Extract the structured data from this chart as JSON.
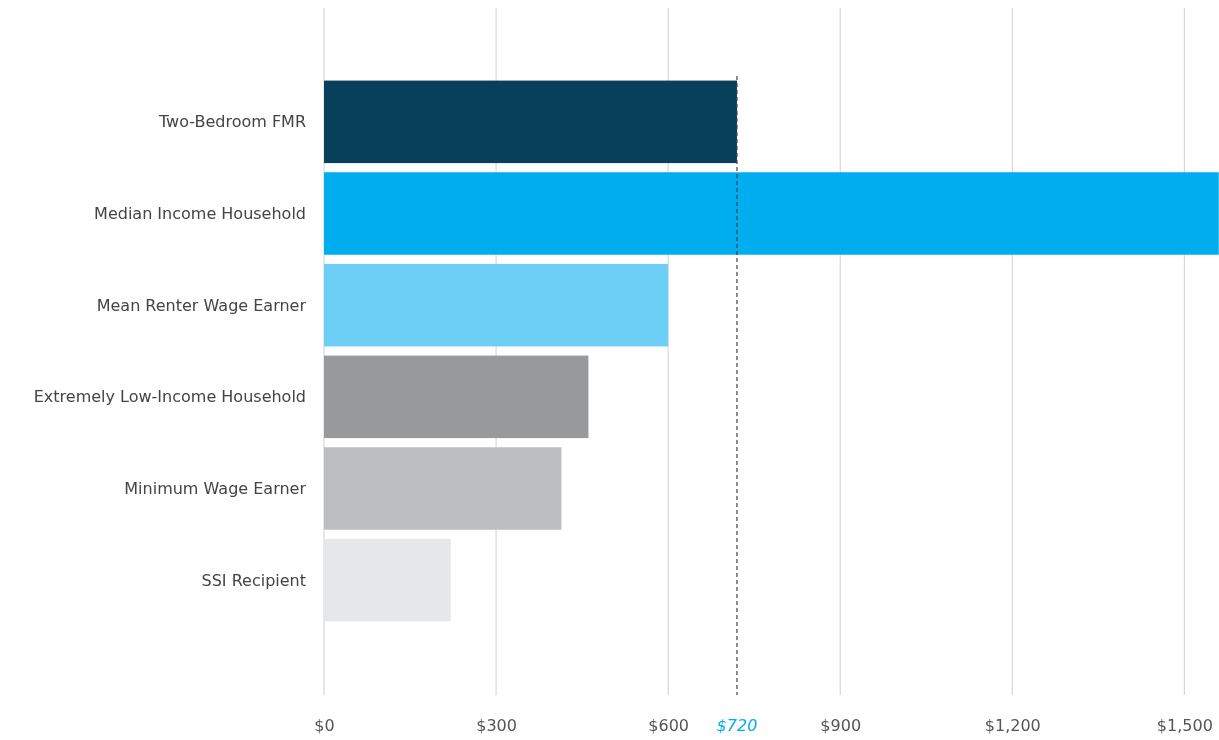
{
  "chart_data": {
    "type": "bar",
    "orientation": "horizontal",
    "categories": [
      "Two-Bedroom FMR",
      "Median Income Household",
      "Mean Renter Wage Earner",
      "Extremely Low-Income Household",
      "Minimum Wage Earner",
      "SSI Recipient"
    ],
    "values": [
      720,
      1560,
      600,
      461,
      414,
      221
    ],
    "colors": [
      "#083f5a",
      "#00aeef",
      "#6dcff6",
      "#98999b",
      "#bcbec0",
      "#e6e7e8"
    ],
    "xlim": [
      0,
      1560
    ],
    "xticks": [
      {
        "value": 0,
        "label": "$0"
      },
      {
        "value": 300,
        "label": "$300"
      },
      {
        "value": 600,
        "label": "$600"
      },
      {
        "value": 900,
        "label": "$900"
      },
      {
        "value": 1200,
        "label": "$1,200"
      },
      {
        "value": 1500,
        "label": "$1,500"
      }
    ],
    "grid": "x",
    "ref_lines": [
      {
        "axis": "x",
        "value": 720,
        "label": "$720",
        "color": "#444444",
        "line_style": "dashed"
      }
    ]
  }
}
